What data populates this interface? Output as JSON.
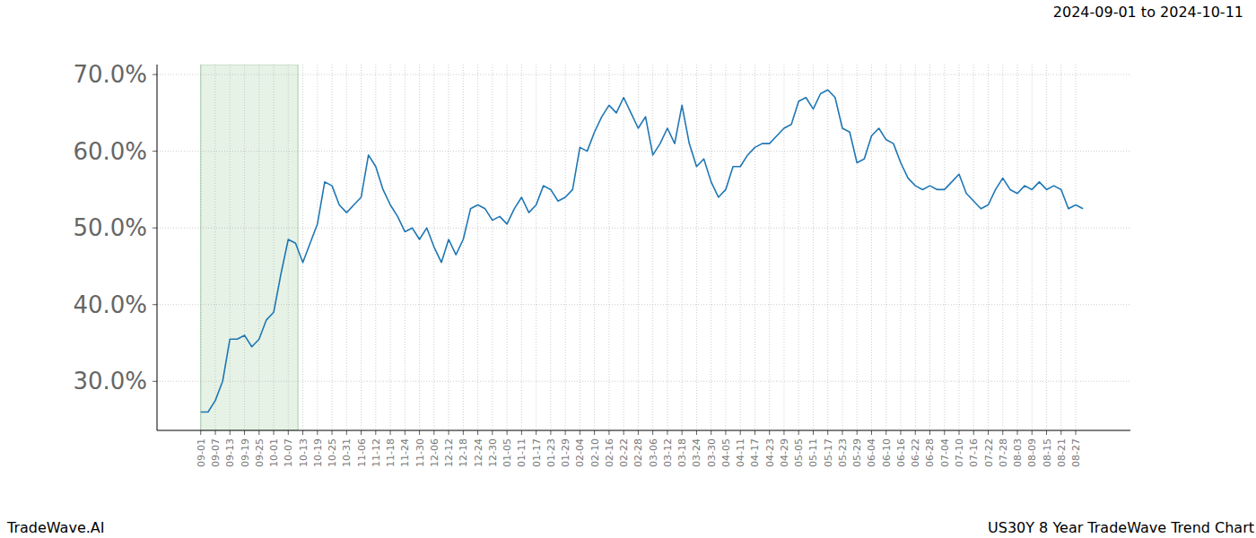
{
  "chart_data": {
    "type": "line",
    "title": "US30Y 8 Year TradeWave Trend Chart",
    "subtitle": "2024-09-01 to 2024-10-11",
    "source": "TradeWave.AI",
    "categories": [
      "09-01",
      null,
      "09-07",
      null,
      "09-13",
      null,
      "09-19",
      null,
      "09-25",
      null,
      "10-01",
      null,
      "10-07",
      null,
      "10-13",
      null,
      "10-19",
      null,
      "10-25",
      null,
      "10-31",
      null,
      "11-06",
      null,
      "11-12",
      null,
      "11-18",
      null,
      "11-24",
      null,
      "11-30",
      null,
      "12-06",
      null,
      "12-12",
      null,
      "12-18",
      null,
      "12-24",
      null,
      "12-30",
      null,
      "01-05",
      null,
      "01-11",
      null,
      "01-17",
      null,
      "01-23",
      null,
      "01-29",
      null,
      "02-04",
      null,
      "02-10",
      null,
      "02-16",
      null,
      "02-22",
      null,
      "02-28",
      null,
      "03-06",
      null,
      "03-12",
      null,
      "03-18",
      null,
      "03-24",
      null,
      "03-30",
      null,
      "04-05",
      null,
      "04-11",
      null,
      "04-17",
      null,
      "04-23",
      null,
      "04-29",
      null,
      "05-05",
      null,
      "05-11",
      null,
      "05-17",
      null,
      "05-23",
      null,
      "05-29",
      null,
      "06-04",
      null,
      "06-10",
      null,
      "06-16",
      null,
      "06-22",
      null,
      "06-28",
      null,
      "07-04",
      null,
      "07-10",
      null,
      "07-16",
      null,
      "07-22",
      null,
      "07-28",
      null,
      "08-03",
      null,
      "08-09",
      null,
      "08-15",
      null,
      "08-21",
      null,
      "08-27",
      null
    ],
    "values": [
      26.0,
      26.0,
      27.5,
      30,
      35.5,
      35.5,
      36,
      34.5,
      35.5,
      38,
      39,
      44,
      48.5,
      48,
      45.5,
      48,
      50.5,
      56,
      55.5,
      53,
      52,
      53,
      54,
      59.5,
      58,
      55,
      53,
      51.5,
      49.5,
      50,
      48.5,
      50,
      47.5,
      45.5,
      48.5,
      46.5,
      48.5,
      52.5,
      53,
      52.5,
      51,
      51.5,
      50.5,
      52.5,
      54,
      52,
      53,
      55.5,
      55,
      53.5,
      54,
      55,
      60.5,
      60,
      62.5,
      64.5,
      66,
      65,
      67,
      65,
      63,
      64.5,
      59.5,
      61,
      63,
      61,
      66,
      61,
      58,
      59,
      56,
      54,
      55,
      58,
      58,
      59.5,
      60.5,
      61,
      61,
      62,
      63,
      63.5,
      66.5,
      67,
      65.5,
      67.5,
      68,
      67,
      63,
      62.5,
      58.5,
      59,
      62,
      63,
      61.5,
      61,
      58.5,
      56.5,
      55.5,
      55,
      55.5,
      55,
      55,
      56,
      57,
      54.5,
      53.5,
      52.5,
      53,
      55,
      56.5,
      55,
      54.5,
      55.5,
      55,
      56,
      55,
      55.5,
      55,
      52.5,
      53,
      52.5
    ],
    "color": "#1f77b4",
    "highlight": {
      "start": 0,
      "end": 13.33
    },
    "xlim": [
      -6,
      127.5
    ],
    "ylim": [
      23.6,
      71.3
    ],
    "yticks": [
      {
        "value": 30,
        "label": "30.0%"
      },
      {
        "value": 40,
        "label": "40.0%"
      },
      {
        "value": 50,
        "label": "50.0%"
      },
      {
        "value": 60,
        "label": "60.0%"
      },
      {
        "value": 70,
        "label": "70.0%"
      }
    ],
    "grid": true
  }
}
